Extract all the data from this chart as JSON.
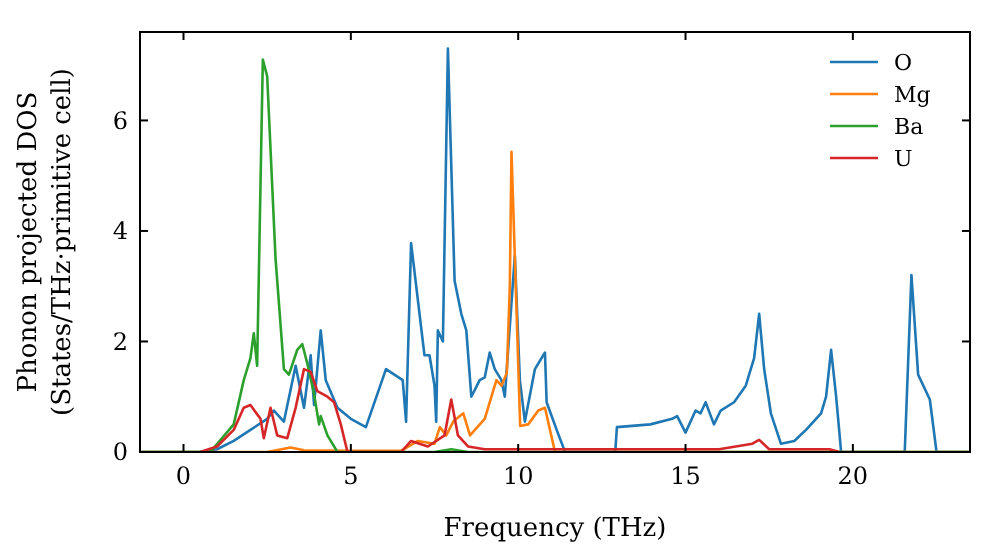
{
  "chart_data": {
    "type": "line",
    "xlabel": "Frequency (THz)",
    "ylabel": "Phonon projected DOS\n(States/THz·primitive cell)",
    "xlim": [
      -1.3,
      23.5
    ],
    "ylim": [
      0,
      7.6
    ],
    "xticks": [
      0,
      5,
      10,
      15,
      20
    ],
    "yticks": [
      0,
      2,
      4,
      6
    ],
    "grid": false,
    "legend": "top right",
    "marker": "none",
    "line_style": "solid",
    "series": [
      {
        "name": "O",
        "color": "#1f77b4",
        "x": [
          -1.3,
          0.5,
          1.0,
          1.5,
          2.0,
          2.5,
          2.7,
          3.0,
          3.35,
          3.6,
          3.8,
          3.9,
          4.1,
          4.25,
          4.6,
          5.0,
          5.45,
          6.05,
          6.55,
          6.65,
          6.8,
          7.2,
          7.35,
          7.5,
          7.55,
          7.6,
          7.75,
          7.9,
          8.1,
          8.3,
          8.45,
          8.6,
          8.85,
          9.0,
          9.15,
          9.3,
          9.5,
          9.6,
          9.9,
          10.05,
          10.2,
          10.5,
          10.8,
          10.85,
          11.15,
          11.4,
          12.9,
          12.95,
          13.95,
          14.6,
          14.75,
          15.0,
          15.3,
          15.45,
          15.6,
          15.85,
          16.05,
          16.45,
          16.8,
          17.05,
          17.2,
          17.35,
          17.55,
          17.85,
          18.25,
          18.6,
          19.05,
          19.2,
          19.35,
          19.5,
          19.65,
          21.55,
          21.75,
          21.95,
          22.3,
          22.5,
          23.5
        ],
        "values": [
          0,
          0,
          0.05,
          0.2,
          0.4,
          0.6,
          0.75,
          0.55,
          1.56,
          0.8,
          1.75,
          0.85,
          2.2,
          1.3,
          0.8,
          0.6,
          0.45,
          1.5,
          1.3,
          0.55,
          3.78,
          1.75,
          1.75,
          1.2,
          0.55,
          2.2,
          2.0,
          7.3,
          3.1,
          2.5,
          2.2,
          1.0,
          1.3,
          1.35,
          1.8,
          1.5,
          1.3,
          1.0,
          3.55,
          1.3,
          0.55,
          1.5,
          1.8,
          0.9,
          0.4,
          0,
          0,
          0.45,
          0.5,
          0.6,
          0.65,
          0.35,
          0.75,
          0.7,
          0.9,
          0.5,
          0.75,
          0.9,
          1.2,
          1.7,
          2.5,
          1.5,
          0.7,
          0.15,
          0.2,
          0.4,
          0.7,
          1.0,
          1.85,
          1.0,
          0,
          0,
          3.2,
          1.4,
          0.95,
          0,
          0
        ]
      },
      {
        "name": "Mg",
        "color": "#ff7f0e",
        "x": [
          -1.3,
          2.5,
          3.2,
          3.6,
          5.0,
          6.5,
          7.0,
          7.5,
          7.66,
          7.85,
          8.06,
          8.36,
          8.56,
          9.0,
          9.35,
          9.5,
          9.66,
          9.75,
          9.8,
          10.06,
          10.3,
          10.6,
          10.8,
          11.1,
          23.5
        ],
        "values": [
          0,
          0,
          0.08,
          0.03,
          0.02,
          0.02,
          0.2,
          0.15,
          0.45,
          0.3,
          0.55,
          0.7,
          0.3,
          0.6,
          1.3,
          1.2,
          1.43,
          3.0,
          5.43,
          0.47,
          0.5,
          0.75,
          0.8,
          0,
          0
        ]
      },
      {
        "name": "Ba",
        "color": "#2ca02c",
        "x": [
          -1.3,
          0.8,
          1.5,
          1.8,
          2.0,
          2.1,
          2.2,
          2.37,
          2.5,
          2.75,
          3.0,
          3.15,
          3.4,
          3.55,
          3.7,
          3.9,
          4.05,
          4.1,
          4.3,
          4.6,
          7.5,
          8.0,
          8.5,
          23.5
        ],
        "values": [
          0,
          0,
          0.5,
          1.3,
          1.7,
          2.15,
          1.56,
          7.1,
          6.8,
          3.5,
          1.5,
          1.4,
          1.85,
          1.95,
          1.6,
          1.05,
          0.5,
          0.65,
          0.3,
          0,
          0,
          0.05,
          0,
          0
        ]
      },
      {
        "name": "U",
        "color": "#d62728",
        "x": [
          0.5,
          1.0,
          1.5,
          1.8,
          2.0,
          2.3,
          2.4,
          2.6,
          2.8,
          3.1,
          3.35,
          3.6,
          3.8,
          4.0,
          4.3,
          4.5,
          4.7,
          4.9,
          6.5,
          6.8,
          7.3,
          7.8,
          8.0,
          8.2,
          8.5,
          9.0,
          16.0,
          17.0,
          17.2,
          17.5,
          19.3,
          19.6
        ],
        "values": [
          0,
          0.1,
          0.4,
          0.8,
          0.85,
          0.6,
          0.25,
          0.8,
          0.3,
          0.25,
          0.8,
          1.5,
          1.45,
          1.1,
          1.0,
          0.9,
          0.5,
          0,
          0,
          0.2,
          0.1,
          0.3,
          0.95,
          0.3,
          0.1,
          0.05,
          0.05,
          0.15,
          0.22,
          0.05,
          0.05,
          0
        ]
      }
    ]
  }
}
